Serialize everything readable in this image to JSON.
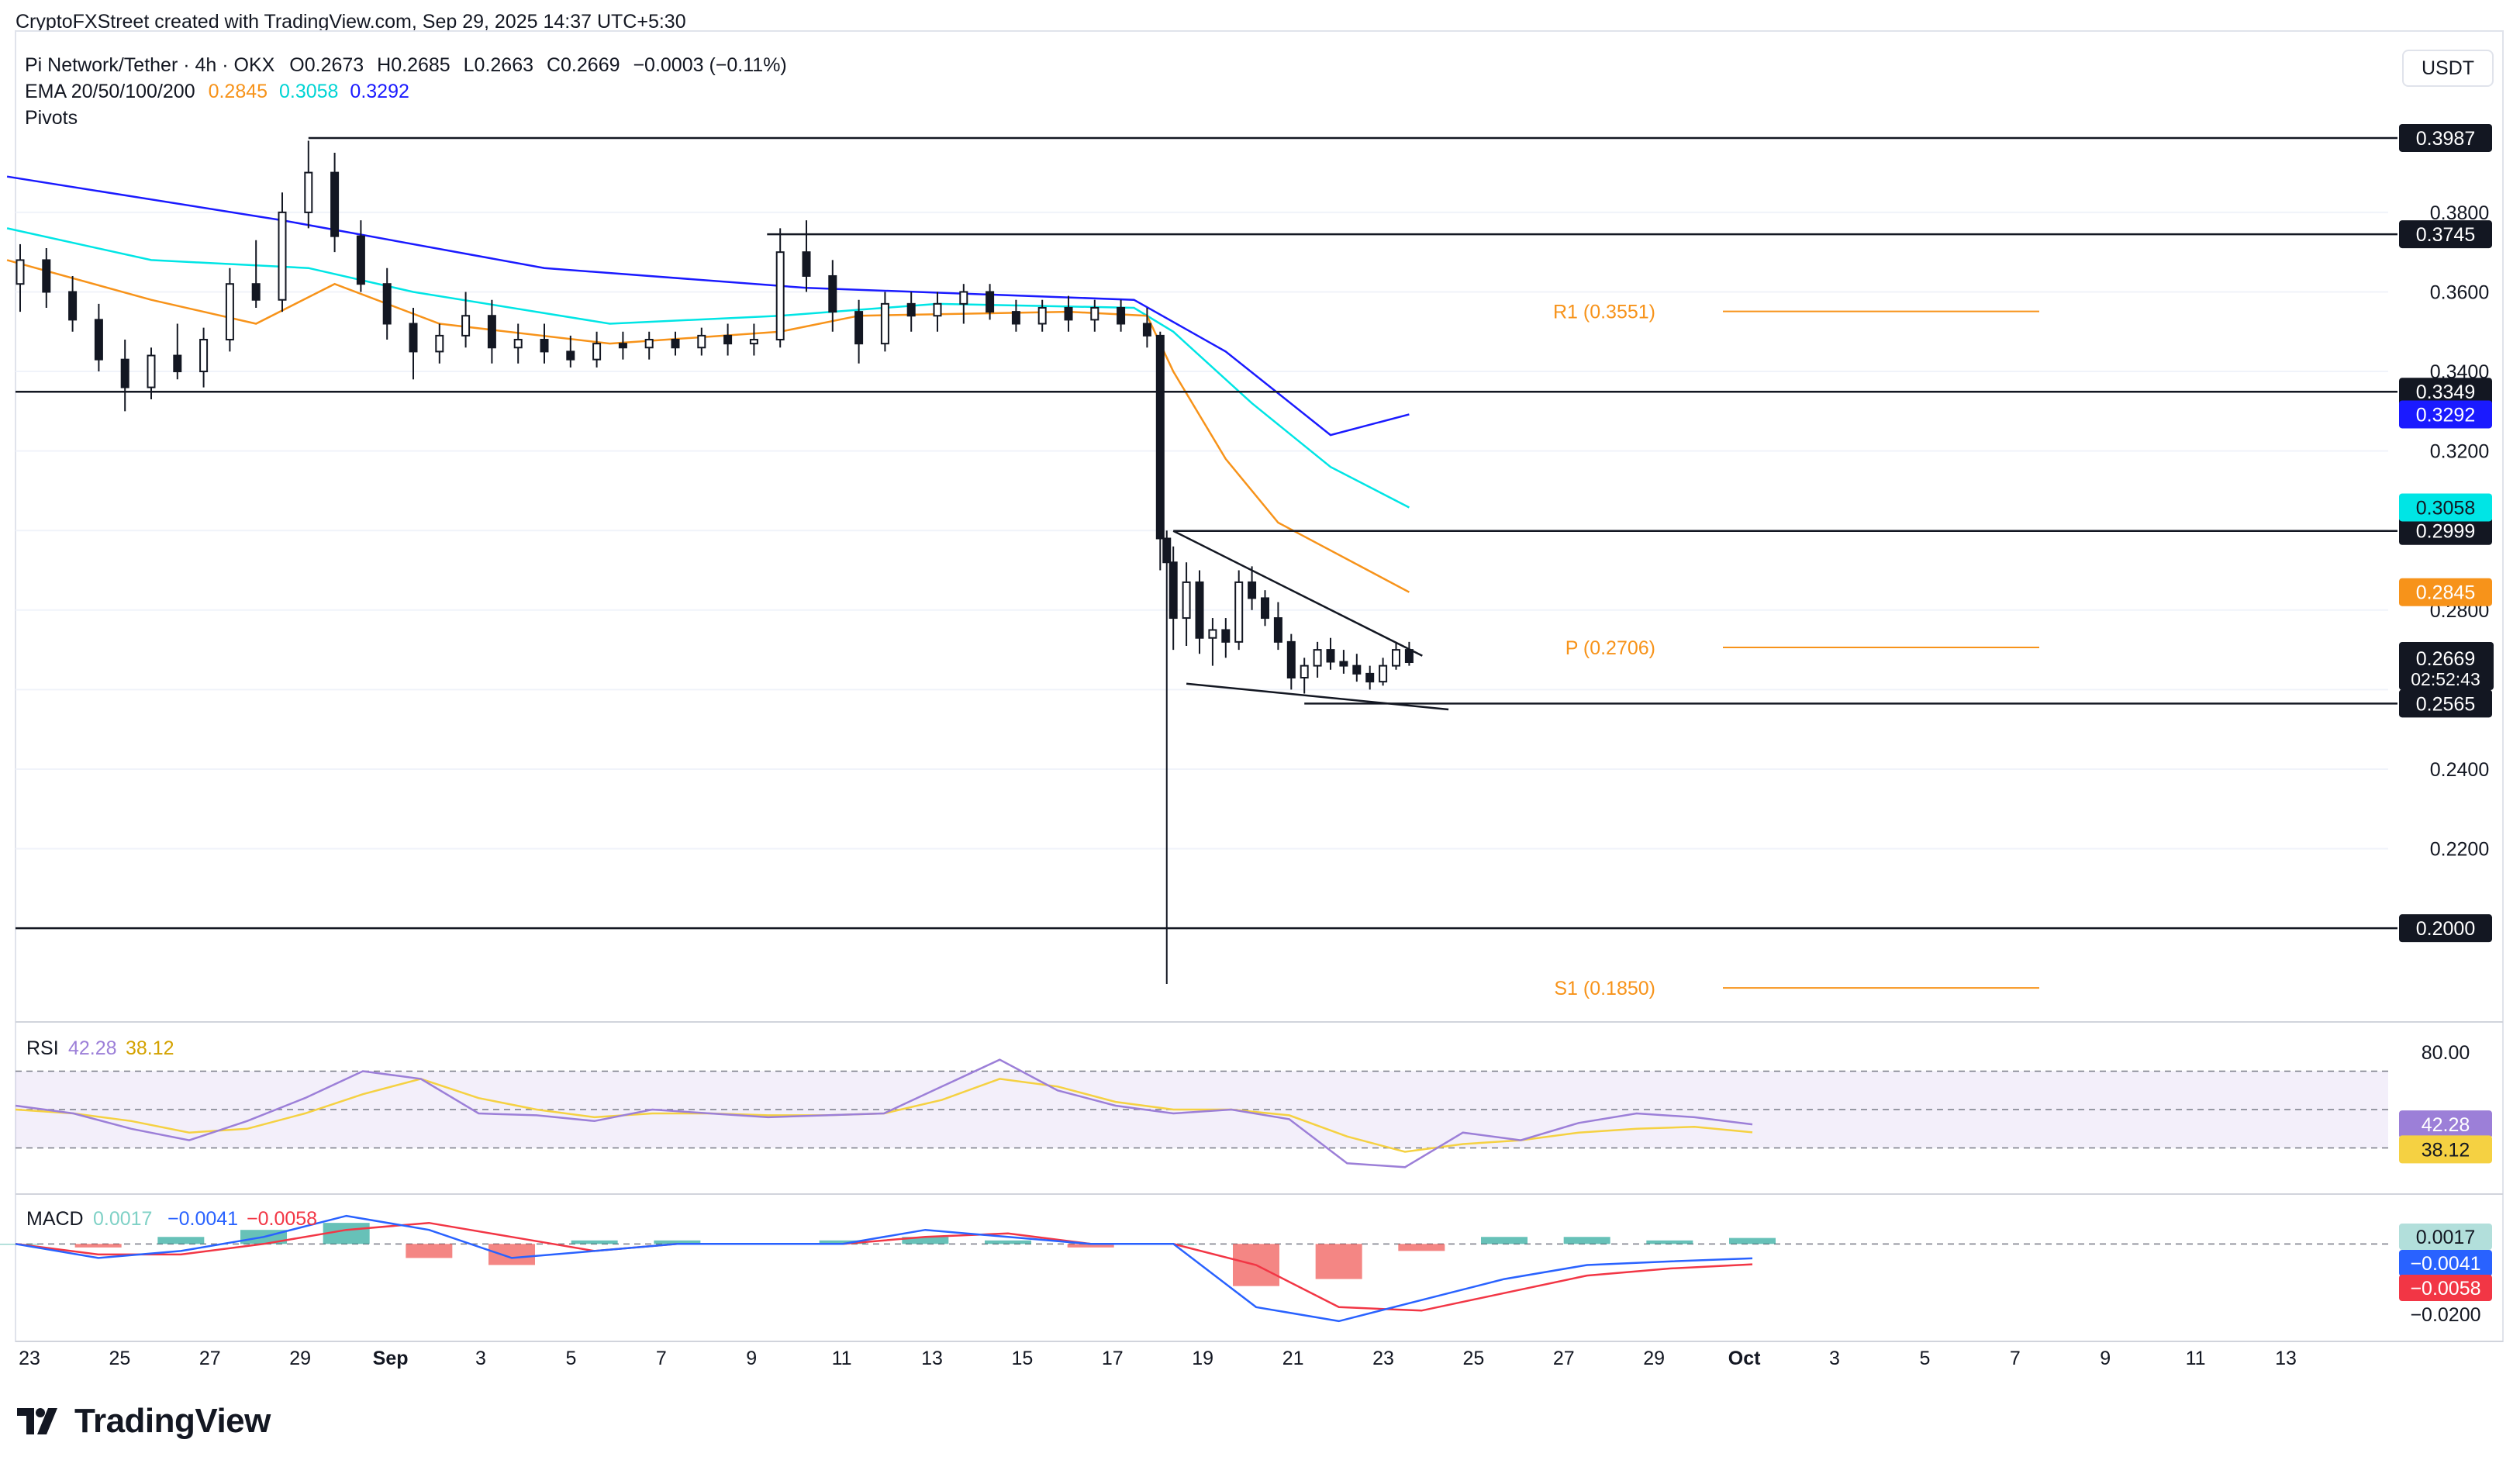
{
  "credit": "CryptoFXStreet created with TradingView.com, Sep 29, 2025 14:37 UTC+5:30",
  "legend": {
    "symbol": "Pi Network/Tether · 4h · OKX",
    "ohlc": {
      "O": "0.2673",
      "H": "0.2685",
      "L": "0.2663",
      "C": "0.2669",
      "change": "−0.0003 (−0.11%)"
    },
    "ema_label": "EMA 20/50/100/200",
    "ema_values": [
      "0.2845",
      "0.3058",
      "0.3292"
    ],
    "pivots_label": "Pivots"
  },
  "currency_button": "USDT",
  "watermark": "TradingView",
  "colors": {
    "ema20": "#f7931a",
    "ema50": "#00e5e5",
    "ema100": "#00bcd4",
    "ema200": "#1a1aff",
    "pivot": "#f7931a",
    "rsi": "#9c7fd8",
    "rsi_ma": "#f5d142",
    "macd": "#2962ff",
    "signal": "#f23645",
    "hist_pos": "#26a69a",
    "hist_neg": "#ef5350"
  },
  "chart_data": [
    {
      "type": "candlestick",
      "title": "Pi Network/Tether · 4h · OKX",
      "x_ticks": [
        "23",
        "25",
        "27",
        "29",
        "Sep",
        "3",
        "5",
        "7",
        "9",
        "11",
        "13",
        "15",
        "17",
        "19",
        "21",
        "23",
        "25",
        "27",
        "29",
        "Oct",
        "3",
        "5",
        "7",
        "9",
        "11",
        "13"
      ],
      "y_ticks": [
        "0.3800",
        "0.3600",
        "0.3400",
        "0.3200",
        "0.2800",
        "0.2400",
        "0.2200"
      ],
      "ylim": [
        0.178,
        0.41
      ],
      "candles": [
        {
          "t": 0,
          "o": 0.362,
          "h": 0.372,
          "l": 0.355,
          "c": 0.368
        },
        {
          "t": 2,
          "o": 0.368,
          "h": 0.371,
          "l": 0.356,
          "c": 0.36
        },
        {
          "t": 4,
          "o": 0.36,
          "h": 0.364,
          "l": 0.35,
          "c": 0.353
        },
        {
          "t": 6,
          "o": 0.353,
          "h": 0.357,
          "l": 0.34,
          "c": 0.343
        },
        {
          "t": 8,
          "o": 0.343,
          "h": 0.348,
          "l": 0.33,
          "c": 0.336
        },
        {
          "t": 10,
          "o": 0.336,
          "h": 0.346,
          "l": 0.333,
          "c": 0.344
        },
        {
          "t": 12,
          "o": 0.344,
          "h": 0.352,
          "l": 0.338,
          "c": 0.34
        },
        {
          "t": 14,
          "o": 0.34,
          "h": 0.351,
          "l": 0.336,
          "c": 0.348
        },
        {
          "t": 16,
          "o": 0.348,
          "h": 0.366,
          "l": 0.345,
          "c": 0.362
        },
        {
          "t": 18,
          "o": 0.362,
          "h": 0.373,
          "l": 0.356,
          "c": 0.358
        },
        {
          "t": 20,
          "o": 0.358,
          "h": 0.385,
          "l": 0.355,
          "c": 0.38
        },
        {
          "t": 22,
          "o": 0.38,
          "h": 0.398,
          "l": 0.376,
          "c": 0.39
        },
        {
          "t": 24,
          "o": 0.39,
          "h": 0.395,
          "l": 0.37,
          "c": 0.374
        },
        {
          "t": 26,
          "o": 0.374,
          "h": 0.378,
          "l": 0.36,
          "c": 0.362
        },
        {
          "t": 28,
          "o": 0.362,
          "h": 0.366,
          "l": 0.348,
          "c": 0.352
        },
        {
          "t": 30,
          "o": 0.352,
          "h": 0.356,
          "l": 0.338,
          "c": 0.345
        },
        {
          "t": 32,
          "o": 0.345,
          "h": 0.352,
          "l": 0.342,
          "c": 0.349
        },
        {
          "t": 34,
          "o": 0.349,
          "h": 0.36,
          "l": 0.346,
          "c": 0.354
        },
        {
          "t": 36,
          "o": 0.354,
          "h": 0.358,
          "l": 0.342,
          "c": 0.346
        },
        {
          "t": 38,
          "o": 0.346,
          "h": 0.352,
          "l": 0.342,
          "c": 0.348
        },
        {
          "t": 40,
          "o": 0.348,
          "h": 0.352,
          "l": 0.342,
          "c": 0.345
        },
        {
          "t": 42,
          "o": 0.345,
          "h": 0.349,
          "l": 0.341,
          "c": 0.343
        },
        {
          "t": 44,
          "o": 0.343,
          "h": 0.35,
          "l": 0.341,
          "c": 0.347
        },
        {
          "t": 46,
          "o": 0.347,
          "h": 0.35,
          "l": 0.343,
          "c": 0.346
        },
        {
          "t": 48,
          "o": 0.346,
          "h": 0.35,
          "l": 0.343,
          "c": 0.348
        },
        {
          "t": 50,
          "o": 0.348,
          "h": 0.35,
          "l": 0.344,
          "c": 0.346
        },
        {
          "t": 52,
          "o": 0.346,
          "h": 0.351,
          "l": 0.344,
          "c": 0.349
        },
        {
          "t": 54,
          "o": 0.349,
          "h": 0.352,
          "l": 0.344,
          "c": 0.347
        },
        {
          "t": 56,
          "o": 0.347,
          "h": 0.352,
          "l": 0.344,
          "c": 0.348
        },
        {
          "t": 58,
          "o": 0.348,
          "h": 0.376,
          "l": 0.346,
          "c": 0.37
        },
        {
          "t": 60,
          "o": 0.37,
          "h": 0.378,
          "l": 0.36,
          "c": 0.364
        },
        {
          "t": 62,
          "o": 0.364,
          "h": 0.368,
          "l": 0.35,
          "c": 0.355
        },
        {
          "t": 64,
          "o": 0.355,
          "h": 0.358,
          "l": 0.342,
          "c": 0.347
        },
        {
          "t": 66,
          "o": 0.347,
          "h": 0.36,
          "l": 0.345,
          "c": 0.357
        },
        {
          "t": 68,
          "o": 0.357,
          "h": 0.36,
          "l": 0.35,
          "c": 0.354
        },
        {
          "t": 70,
          "o": 0.354,
          "h": 0.36,
          "l": 0.35,
          "c": 0.357
        },
        {
          "t": 72,
          "o": 0.357,
          "h": 0.362,
          "l": 0.352,
          "c": 0.36
        },
        {
          "t": 74,
          "o": 0.36,
          "h": 0.362,
          "l": 0.353,
          "c": 0.355
        },
        {
          "t": 76,
          "o": 0.355,
          "h": 0.358,
          "l": 0.35,
          "c": 0.352
        },
        {
          "t": 78,
          "o": 0.352,
          "h": 0.358,
          "l": 0.35,
          "c": 0.356
        },
        {
          "t": 80,
          "o": 0.356,
          "h": 0.359,
          "l": 0.35,
          "c": 0.353
        },
        {
          "t": 82,
          "o": 0.353,
          "h": 0.358,
          "l": 0.35,
          "c": 0.356
        },
        {
          "t": 84,
          "o": 0.356,
          "h": 0.358,
          "l": 0.35,
          "c": 0.352
        },
        {
          "t": 86,
          "o": 0.352,
          "h": 0.356,
          "l": 0.346,
          "c": 0.349
        },
        {
          "t": 87,
          "o": 0.349,
          "h": 0.35,
          "l": 0.29,
          "c": 0.298
        },
        {
          "t": 87.5,
          "o": 0.298,
          "h": 0.3,
          "l": 0.186,
          "c": 0.292
        },
        {
          "t": 88,
          "o": 0.292,
          "h": 0.296,
          "l": 0.27,
          "c": 0.278
        },
        {
          "t": 89,
          "o": 0.278,
          "h": 0.292,
          "l": 0.271,
          "c": 0.287
        },
        {
          "t": 90,
          "o": 0.287,
          "h": 0.29,
          "l": 0.269,
          "c": 0.273
        },
        {
          "t": 91,
          "o": 0.273,
          "h": 0.278,
          "l": 0.266,
          "c": 0.275
        },
        {
          "t": 92,
          "o": 0.275,
          "h": 0.278,
          "l": 0.268,
          "c": 0.272
        },
        {
          "t": 93,
          "o": 0.272,
          "h": 0.29,
          "l": 0.27,
          "c": 0.287
        },
        {
          "t": 94,
          "o": 0.287,
          "h": 0.291,
          "l": 0.28,
          "c": 0.283
        },
        {
          "t": 95,
          "o": 0.283,
          "h": 0.285,
          "l": 0.276,
          "c": 0.278
        },
        {
          "t": 96,
          "o": 0.278,
          "h": 0.282,
          "l": 0.27,
          "c": 0.272
        },
        {
          "t": 97,
          "o": 0.272,
          "h": 0.274,
          "l": 0.26,
          "c": 0.263
        },
        {
          "t": 98,
          "o": 0.263,
          "h": 0.268,
          "l": 0.259,
          "c": 0.266
        },
        {
          "t": 99,
          "o": 0.266,
          "h": 0.272,
          "l": 0.263,
          "c": 0.27
        },
        {
          "t": 100,
          "o": 0.27,
          "h": 0.273,
          "l": 0.265,
          "c": 0.267
        },
        {
          "t": 101,
          "o": 0.267,
          "h": 0.27,
          "l": 0.264,
          "c": 0.266
        },
        {
          "t": 102,
          "o": 0.266,
          "h": 0.269,
          "l": 0.262,
          "c": 0.264
        },
        {
          "t": 103,
          "o": 0.264,
          "h": 0.266,
          "l": 0.26,
          "c": 0.262
        },
        {
          "t": 104,
          "o": 0.262,
          "h": 0.268,
          "l": 0.261,
          "c": 0.266
        },
        {
          "t": 105,
          "o": 0.266,
          "h": 0.272,
          "l": 0.265,
          "c": 0.27
        },
        {
          "t": 106,
          "o": 0.27,
          "h": 0.272,
          "l": 0.266,
          "c": 0.2669
        }
      ],
      "horizontal_levels": [
        {
          "value": 0.3987,
          "label": "0.3987"
        },
        {
          "value": 0.3745,
          "label": "0.3745"
        },
        {
          "value": 0.3349,
          "label": "0.3349"
        },
        {
          "value": 0.2999,
          "label": "0.2999"
        },
        {
          "value": 0.2565,
          "label": "0.2565"
        },
        {
          "value": 0.2,
          "label": "0.2000"
        }
      ],
      "pivot_levels": [
        {
          "name": "R1",
          "value": 0.3551,
          "label": "R1 (0.3551)"
        },
        {
          "name": "P",
          "value": 0.2706,
          "label": "P (0.2706)"
        },
        {
          "name": "S1",
          "value": 0.185,
          "label": "S1 (0.1850)"
        }
      ],
      "ema_series": [
        {
          "name": "EMA 20",
          "last": 0.2845,
          "label": "0.2845"
        },
        {
          "name": "EMA 50",
          "last": 0.3058,
          "label": "0.3058"
        },
        {
          "name": "EMA 200",
          "last": 0.3292,
          "label": "0.3292"
        }
      ],
      "current_price": {
        "value": 0.2669,
        "label": "0.2669",
        "countdown": "02:52:43"
      }
    },
    {
      "type": "line",
      "title": "RSI",
      "series": [
        {
          "name": "RSI",
          "last": "42.28",
          "values": [
            52,
            48,
            40,
            34,
            44,
            56,
            70,
            66,
            48,
            47,
            44,
            50,
            48,
            46,
            47,
            48,
            62,
            76,
            60,
            52,
            48,
            50,
            45,
            22,
            20,
            38,
            34,
            43,
            48,
            46,
            42.28
          ]
        },
        {
          "name": "RSI MA",
          "last": "38.12",
          "values": [
            50,
            48,
            44,
            38,
            40,
            48,
            58,
            66,
            56,
            50,
            46,
            48,
            48,
            47,
            47,
            48,
            55,
            66,
            62,
            54,
            50,
            50,
            47,
            36,
            28,
            32,
            34,
            38,
            40,
            41,
            38.12
          ]
        }
      ],
      "ylim": [
        10,
        90
      ],
      "bands": [
        70,
        50,
        30
      ],
      "y_ticks": [
        "80.00"
      ]
    },
    {
      "type": "line",
      "title": "MACD",
      "series": [
        {
          "name": "Histogram",
          "last": "0.0017",
          "values": [
            0.0,
            -0.001,
            0.002,
            0.004,
            0.006,
            -0.004,
            -0.006,
            0.001,
            0.001,
            0.0,
            0.001,
            0.002,
            0.001,
            -0.001,
            0.0,
            -0.012,
            -0.01,
            -0.002,
            0.002,
            0.002,
            0.001,
            0.0017
          ]
        },
        {
          "name": "MACD",
          "last": "−0.0041",
          "values": [
            0.0,
            -0.004,
            -0.002,
            0.002,
            0.008,
            0.004,
            -0.004,
            -0.002,
            0.0,
            0.0,
            0.0,
            0.004,
            0.002,
            0.0,
            0.0,
            -0.018,
            -0.022,
            -0.016,
            -0.01,
            -0.006,
            -0.005,
            -0.0041
          ]
        },
        {
          "name": "Signal",
          "last": "−0.0058",
          "values": [
            0.0,
            -0.003,
            -0.003,
            0.0,
            0.004,
            0.006,
            0.002,
            -0.002,
            0.0,
            0.0,
            0.0,
            0.002,
            0.003,
            0.0,
            0.0,
            -0.006,
            -0.018,
            -0.019,
            -0.014,
            -0.009,
            -0.007,
            -0.0058
          ]
        }
      ],
      "ylim": [
        -0.026,
        0.012
      ],
      "y_ticks": [
        "−0.0200"
      ]
    }
  ]
}
